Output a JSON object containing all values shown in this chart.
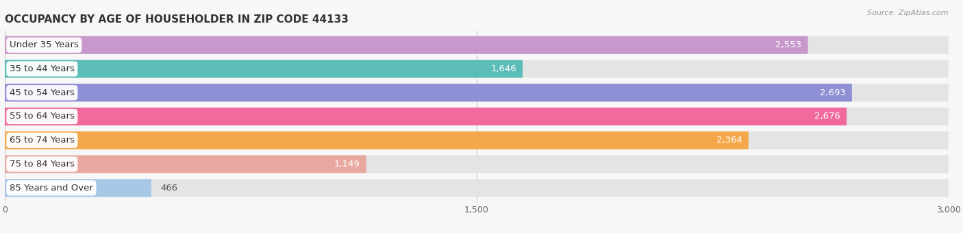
{
  "title": "OCCUPANCY BY AGE OF HOUSEHOLDER IN ZIP CODE 44133",
  "source": "Source: ZipAtlas.com",
  "categories": [
    "Under 35 Years",
    "35 to 44 Years",
    "45 to 54 Years",
    "55 to 64 Years",
    "65 to 74 Years",
    "75 to 84 Years",
    "85 Years and Over"
  ],
  "values": [
    2553,
    1646,
    2693,
    2676,
    2364,
    1149,
    466
  ],
  "bar_colors": [
    "#c898cc",
    "#5bbcb8",
    "#8e8fd4",
    "#f06a9e",
    "#f5a84a",
    "#e8a8a0",
    "#a8c8e8"
  ],
  "xlim": [
    0,
    3000
  ],
  "xticks": [
    0,
    1500,
    3000
  ],
  "background_color": "#f7f7f7",
  "bar_bg_color": "#e4e4e4",
  "title_fontsize": 11,
  "label_fontsize": 9.5,
  "value_fontsize": 9.5
}
